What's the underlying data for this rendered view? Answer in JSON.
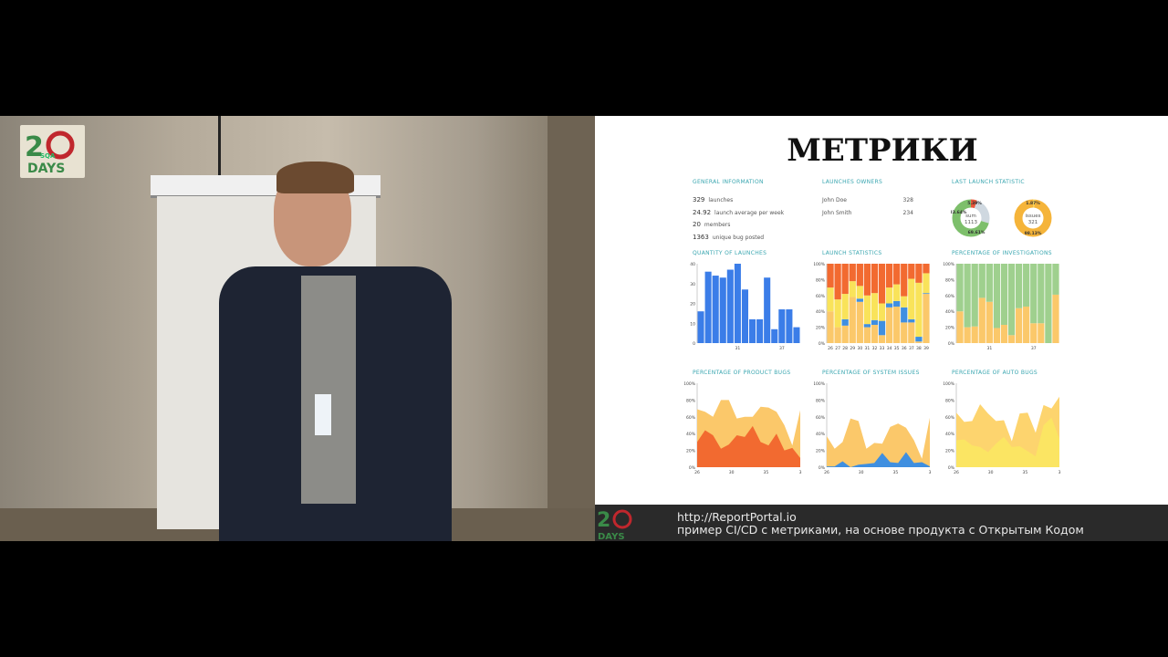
{
  "slide": {
    "title": "МЕТРИКИ",
    "general_information": {
      "title": "GENERAL INFORMATION",
      "rows": [
        {
          "value": "329",
          "label": "launches"
        },
        {
          "value": "24.92",
          "label": "launch average per week"
        },
        {
          "value": "20",
          "label": "members"
        },
        {
          "value": "1363",
          "label": "unique bug posted"
        }
      ]
    },
    "launches_owners": {
      "title": "LAUNCHES OWNERS",
      "rows": [
        {
          "name": "John Doe",
          "count": "328"
        },
        {
          "name": "John Smith",
          "count": "234"
        }
      ]
    },
    "last_launch_statistic": {
      "title": "LAST LAUNCH STATISTIC",
      "donut1": {
        "center_label": "sum",
        "center_value": "1113",
        "labels": [
          "5.39%",
          "23.64%",
          "69.61%"
        ],
        "values": [
          5.39,
          23.64,
          69.61
        ],
        "colors": [
          "#e8553a",
          "#cfd8e0",
          "#7dbf6b"
        ]
      },
      "donut2": {
        "center_label": "issues",
        "center_value": "321",
        "labels": [
          "1.87%",
          "98.13%"
        ],
        "values": [
          1.87,
          98.13
        ],
        "colors": [
          "#f7d35a",
          "#f5b43a"
        ]
      }
    }
  },
  "chart_data": [
    {
      "type": "bar",
      "title": "QUANTITY OF LAUNCHES",
      "values": [
        16,
        36,
        34,
        33,
        37,
        40,
        27,
        12,
        12,
        33,
        7,
        17,
        17,
        8
      ],
      "ylim": [
        0,
        40
      ],
      "yticks": [
        "0",
        "10",
        "20",
        "30",
        "40"
      ],
      "xticks": [
        {
          "i": 5,
          "label": "31"
        },
        {
          "i": 11,
          "label": "37"
        }
      ],
      "color": "#3b7de8"
    },
    {
      "type": "bar",
      "stacked": true,
      "title": "LAUNCH STATISTICS",
      "categories": [
        "26",
        "27",
        "28",
        "29",
        "30",
        "31",
        "32",
        "33",
        "34",
        "35",
        "36",
        "37",
        "38",
        "39"
      ],
      "segments": [
        [
          40,
          0,
          30,
          30
        ],
        [
          20,
          0,
          35,
          45
        ],
        [
          22,
          8,
          32,
          38
        ],
        [
          58,
          0,
          20,
          22
        ],
        [
          52,
          4,
          16,
          28
        ],
        [
          20,
          4,
          36,
          40
        ],
        [
          23,
          6,
          34,
          37
        ],
        [
          10,
          18,
          22,
          50
        ],
        [
          45,
          5,
          20,
          30
        ],
        [
          46,
          7,
          21,
          26
        ],
        [
          26,
          19,
          14,
          41
        ],
        [
          26,
          4,
          51,
          19
        ],
        [
          2,
          6,
          68,
          24
        ],
        [
          62,
          1,
          25,
          12
        ]
      ],
      "colors": [
        "#fbc86a",
        "#3f8fe0",
        "#f9e35a",
        "#f26a30"
      ],
      "ylim": [
        0,
        100
      ],
      "yticks": [
        "0%",
        "20%",
        "40%",
        "60%",
        "80%",
        "100%"
      ]
    },
    {
      "type": "bar",
      "stacked": true,
      "title": "PERCENTAGE OF INVESTIGATIONS",
      "segments": [
        [
          40,
          60
        ],
        [
          20,
          80
        ],
        [
          21,
          79
        ],
        [
          57,
          43
        ],
        [
          52,
          48
        ],
        [
          19,
          81
        ],
        [
          23,
          77
        ],
        [
          10,
          90
        ],
        [
          44,
          56
        ],
        [
          46,
          54
        ],
        [
          25,
          75
        ],
        [
          25,
          75
        ],
        [
          0,
          100
        ],
        [
          61,
          39
        ]
      ],
      "colors": [
        "#fbc86a",
        "#9fd08e"
      ],
      "ylim": [
        0,
        100
      ],
      "yticks": [
        "0%",
        "20%",
        "40%",
        "60%",
        "80%",
        "100%"
      ],
      "xticks": [
        {
          "i": 4,
          "label": "31"
        },
        {
          "i": 10,
          "label": "37"
        }
      ]
    },
    {
      "type": "area",
      "title": "PERCENTAGE OF PRODUCT BUGS",
      "series": [
        {
          "values": [
            69,
            66,
            60,
            80,
            80,
            58,
            60,
            60,
            72,
            71,
            66,
            50,
            26,
            68
          ],
          "color": "#fbc86a"
        },
        {
          "values": [
            30,
            44,
            38,
            22,
            27,
            38,
            36,
            49,
            30,
            26,
            40,
            20,
            23,
            11
          ],
          "color": "#f26a30"
        }
      ],
      "ylim": [
        0,
        100
      ],
      "yticks": [
        "0%",
        "20%",
        "40%",
        "60%",
        "80%",
        "100%"
      ],
      "xticks": [
        "26",
        "30",
        "35",
        "3"
      ]
    },
    {
      "type": "area",
      "title": "PERCENTAGE OF SYSTEM ISSUES",
      "series": [
        {
          "values": [
            37,
            22,
            30,
            58,
            55,
            22,
            29,
            28,
            48,
            52,
            47,
            32,
            10,
            59
          ],
          "color": "#fbc86a"
        },
        {
          "values": [
            1,
            1,
            7,
            0,
            3,
            4,
            5,
            17,
            6,
            5,
            18,
            5,
            6,
            1
          ],
          "color": "#3f8fe0"
        }
      ],
      "ylim": [
        0,
        100
      ],
      "yticks": [
        "0%",
        "20%",
        "40%",
        "60%",
        "80%",
        "100%"
      ],
      "xticks": [
        "26",
        "30",
        "35",
        "3"
      ]
    },
    {
      "type": "area",
      "title": "PERCENTAGE OF AUTO BUGS",
      "series": [
        {
          "values": [
            65,
            54,
            55,
            75,
            64,
            55,
            56,
            31,
            64,
            65,
            41,
            74,
            70,
            84
          ],
          "color": "#fdd46e"
        },
        {
          "values": [
            32,
            33,
            26,
            24,
            18,
            28,
            36,
            24,
            25,
            19,
            13,
            50,
            59,
            34
          ],
          "color": "#fbe563"
        }
      ],
      "ylim": [
        0,
        100
      ],
      "yticks": [
        "0%",
        "20%",
        "40%",
        "60%",
        "80%",
        "100%"
      ],
      "xticks": [
        "26",
        "30",
        "35",
        "3"
      ]
    }
  ],
  "caption": {
    "line1": "http://ReportPortal.io",
    "line2": "пример CI/CD с метриками, на основе продукта с Открытым Кодом"
  },
  "logo": {
    "text": "20 SQA DAYS"
  }
}
